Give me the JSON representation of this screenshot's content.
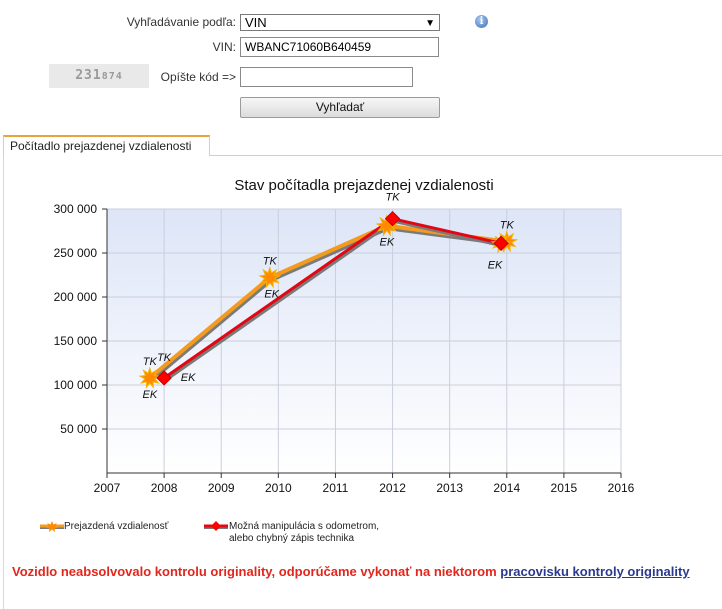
{
  "search": {
    "search_by_label": "Vyhľadávanie podľa:",
    "search_by_value": "VIN",
    "vin_label": "VIN:",
    "vin_value": "WBANC71060B640459",
    "captcha_part1": "231",
    "captcha_part2": "874",
    "captcha_label": "Opíšte kód =>",
    "captcha_value": "",
    "submit_label": "Vyhľadať",
    "info_icon_glyph": "i"
  },
  "tabs": [
    {
      "label": "Počítadlo prejazdenej vzdialenosti"
    }
  ],
  "chart_data": {
    "type": "line",
    "title": "Stav počítadla prejazdenej vzdialenosti",
    "xlabel": "",
    "ylabel": "",
    "xlim": [
      2007,
      2016
    ],
    "ylim": [
      0,
      300000
    ],
    "x_ticks": [
      2007,
      2008,
      2009,
      2010,
      2011,
      2012,
      2013,
      2014,
      2015,
      2016
    ],
    "y_ticks": [
      50000,
      100000,
      150000,
      200000,
      250000,
      300000
    ],
    "y_tick_labels": [
      "50 000",
      "100 000",
      "150 000",
      "200 000",
      "250 000",
      "300 000"
    ],
    "grid": true,
    "series": [
      {
        "name": "Prejazdená vzdialenosť",
        "color": "#f39a1f",
        "points": [
          {
            "x": 2007.75,
            "y": 108000,
            "labels": [
              "TK",
              "EK"
            ]
          },
          {
            "x": 2009.85,
            "y": 222000,
            "labels": [
              "TK",
              "EK"
            ]
          },
          {
            "x": 2011.9,
            "y": 281000,
            "labels": [
              "EK"
            ]
          },
          {
            "x": 2014.0,
            "y": 263000,
            "labels": [
              "TK"
            ]
          }
        ]
      },
      {
        "name": "Možná manipulácia s odometrom, alebo chybný zápis technika",
        "color": "#e30613",
        "points": [
          {
            "x": 2008.0,
            "y": 108000,
            "labels": [
              "TK",
              "EK"
            ]
          },
          {
            "x": 2012.0,
            "y": 289000,
            "labels": [
              "TK"
            ]
          },
          {
            "x": 2013.9,
            "y": 261000,
            "labels": [
              "EK"
            ]
          }
        ]
      }
    ]
  },
  "legend": {
    "series1": "Prejazdená vzdialenosť",
    "series2_line1": "Možná manipulácia s odometrom,",
    "series2_line2": "alebo chybný zápis technika"
  },
  "warning": {
    "text": "Vozidlo neabsolvovalo kontrolu originality, odporúčame vykonať na niektorom",
    "link": "pracovisku kontroly originality"
  },
  "colors": {
    "tab_accent": "#e8a33a",
    "warning_red": "#e3261c",
    "link_blue": "#2b3a8f",
    "plot_bg_top": "#dde5f7",
    "plot_bg_bottom": "#ffffff"
  }
}
